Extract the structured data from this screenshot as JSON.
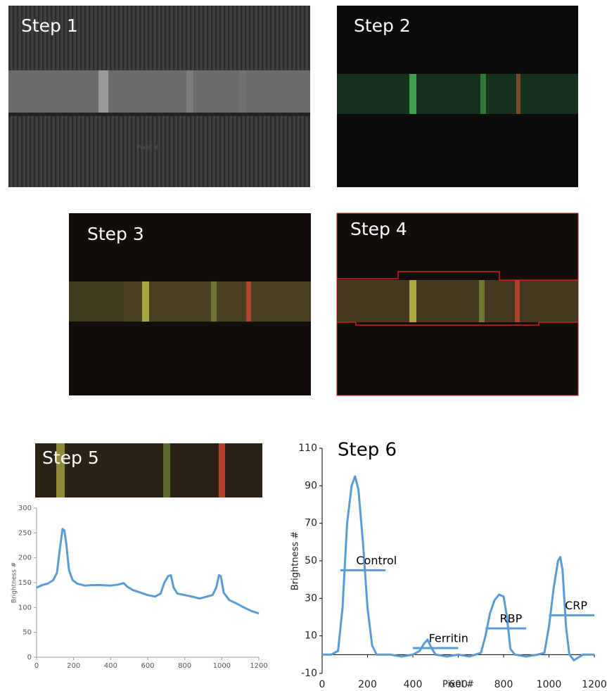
{
  "panels": [
    {
      "label": "Step 1"
    },
    {
      "label": "Step 2"
    },
    {
      "label": "Step 3"
    },
    {
      "label": "Step 4"
    },
    {
      "label": "Step 5"
    }
  ],
  "chart_data": [
    {
      "type": "line",
      "xlabel": "Pixel #",
      "ylabel": "Brightness #",
      "xlim": [
        0,
        1200
      ],
      "xticks": [
        0,
        200,
        400,
        600,
        800,
        1000,
        1200
      ],
      "ylim": [
        0,
        300
      ],
      "yticks": [
        0,
        50,
        100,
        150,
        200,
        250,
        300
      ],
      "series": [
        {
          "color": "#5b9bd5",
          "x": [
            0,
            30,
            60,
            90,
            110,
            125,
            140,
            150,
            160,
            175,
            195,
            220,
            260,
            300,
            350,
            400,
            440,
            470,
            490,
            520,
            560,
            600,
            640,
            670,
            690,
            710,
            725,
            740,
            760,
            800,
            850,
            880,
            920,
            950,
            970,
            985,
            995,
            1010,
            1040,
            1080,
            1120,
            1160,
            1200
          ],
          "values": [
            140,
            145,
            148,
            155,
            170,
            215,
            258,
            255,
            230,
            175,
            155,
            148,
            144,
            145,
            145,
            144,
            146,
            149,
            142,
            135,
            130,
            125,
            122,
            128,
            150,
            163,
            165,
            140,
            128,
            125,
            121,
            118,
            122,
            125,
            140,
            165,
            163,
            130,
            115,
            108,
            100,
            93,
            88
          ]
        }
      ]
    },
    {
      "type": "line",
      "title": "Step 6",
      "xlabel": "Pixel #",
      "ylabel": "Brightness #",
      "xlim": [
        0,
        1200
      ],
      "xticks": [
        0,
        200,
        400,
        600,
        800,
        1000,
        1200
      ],
      "ylim": [
        -10,
        110
      ],
      "yticks": [
        -10,
        10,
        30,
        50,
        70,
        90,
        110
      ],
      "series": [
        {
          "color": "#5b9bd5",
          "x": [
            0,
            40,
            70,
            90,
            110,
            130,
            145,
            160,
            180,
            200,
            220,
            240,
            300,
            350,
            400,
            430,
            450,
            465,
            480,
            500,
            550,
            600,
            650,
            700,
            720,
            740,
            760,
            780,
            800,
            815,
            830,
            850,
            900,
            950,
            980,
            1000,
            1020,
            1040,
            1050,
            1060,
            1075,
            1090,
            1110,
            1150,
            1200
          ],
          "values": [
            0,
            0,
            2,
            25,
            70,
            90,
            95,
            88,
            60,
            25,
            5,
            0,
            0,
            -1,
            0,
            2,
            6,
            8,
            4,
            0,
            -1,
            0,
            -1,
            1,
            10,
            22,
            29,
            32,
            31,
            20,
            3,
            0,
            -1,
            0,
            1,
            15,
            35,
            50,
            52,
            45,
            15,
            0,
            -3,
            0,
            0
          ]
        }
      ],
      "annotations": [
        {
          "label": "Control",
          "value": 45,
          "xrange": [
            80,
            280
          ]
        },
        {
          "label": "Ferritin",
          "value": 3.5,
          "xrange": [
            400,
            600
          ]
        },
        {
          "label": "RBP",
          "value": 14,
          "xrange": [
            720,
            900
          ]
        },
        {
          "label": "CRP",
          "value": 21,
          "xrange": [
            1000,
            1200
          ]
        }
      ]
    }
  ]
}
